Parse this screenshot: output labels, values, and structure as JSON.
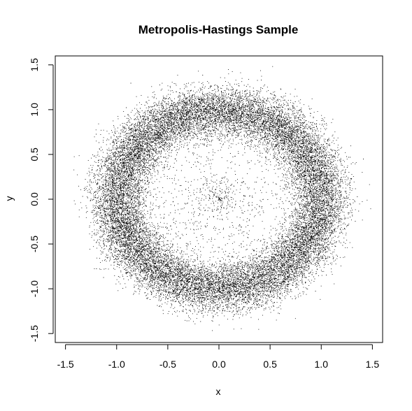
{
  "chart_data": {
    "type": "scatter",
    "title": "Metropolis-Hastings Sample",
    "xlabel": "x",
    "ylabel": "y",
    "xlim": [
      -1.6,
      1.6
    ],
    "ylim": [
      -1.6,
      1.6
    ],
    "xticks": [
      "-1.5",
      "-1.0",
      "-0.5",
      "0.0",
      "0.5",
      "1.0",
      "1.5"
    ],
    "yticks": [
      "-1.5",
      "-1.0",
      "-0.5",
      "0.0",
      "0.5",
      "1.0",
      "1.5"
    ],
    "grid": false,
    "point_color": "#000000",
    "marker": "dot",
    "distribution": {
      "shape": "ring",
      "center": [
        0.0,
        0.0
      ],
      "radius_mean": 1.0,
      "radius_sd": 0.14,
      "n_points": 24000
    }
  }
}
